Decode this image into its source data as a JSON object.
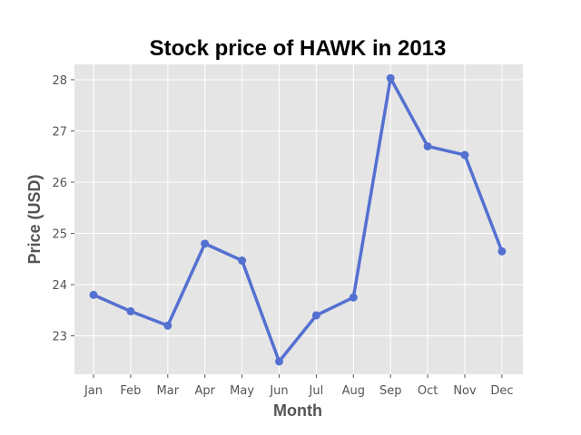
{
  "chart_data": {
    "type": "line",
    "title": "Stock price of HAWK in 2013",
    "xlabel": "Month",
    "ylabel": "Price (USD)",
    "categories": [
      "Jan",
      "Feb",
      "Mar",
      "Apr",
      "May",
      "Jun",
      "Jul",
      "Aug",
      "Sep",
      "Oct",
      "Nov",
      "Dec"
    ],
    "series": [
      {
        "values": [
          23.8,
          23.48,
          23.2,
          24.8,
          24.47,
          22.5,
          23.4,
          23.75,
          28.03,
          26.7,
          26.53,
          24.65
        ],
        "color": "#5470d1"
      }
    ],
    "yticks": [
      23,
      24,
      25,
      26,
      27,
      28
    ],
    "ylim": [
      22.25,
      28.3
    ],
    "grid": true,
    "plot_background": "#e5e5e5",
    "grid_color": "#ffffff",
    "legend": "none"
  }
}
